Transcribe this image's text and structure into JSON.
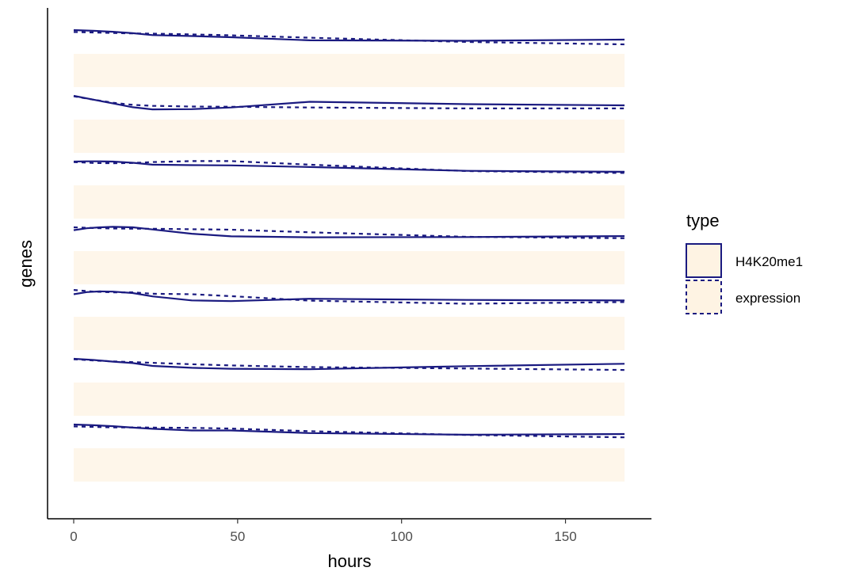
{
  "chart_data": {
    "type": "line",
    "xlabel": "hours",
    "ylabel": "genes",
    "xlim": [
      -7.5,
      175.5
    ],
    "xticks": [
      0,
      50,
      100,
      150
    ],
    "grid": false,
    "legend": {
      "title": "type",
      "placement": "right",
      "entries": [
        {
          "label": "H4K20me1",
          "line": "solid"
        },
        {
          "label": "expression",
          "line": "dashed"
        }
      ]
    },
    "colors": {
      "line": "#1a1a80",
      "ribbon": "#fdebd0"
    },
    "genes": [
      {
        "h4k20me1": {
          "x": [
            0,
            6,
            12,
            18,
            24,
            36,
            48,
            72,
            120,
            168
          ],
          "y": [
            1.0,
            0.97,
            0.93,
            0.87,
            0.79,
            0.75,
            0.7,
            0.57,
            0.55,
            0.6
          ]
        },
        "expression": {
          "x": [
            0,
            6,
            12,
            18,
            24,
            36,
            48,
            72,
            120,
            168
          ],
          "y": [
            0.92,
            0.9,
            0.88,
            0.86,
            0.85,
            0.82,
            0.78,
            0.68,
            0.5,
            0.4
          ]
        }
      },
      {
        "h4k20me1": {
          "x": [
            0,
            6,
            12,
            18,
            24,
            36,
            48,
            72,
            120,
            168
          ],
          "y": [
            1.0,
            0.84,
            0.68,
            0.52,
            0.43,
            0.44,
            0.51,
            0.75,
            0.65,
            0.6
          ]
        },
        "expression": {
          "x": [
            0,
            6,
            12,
            18,
            24,
            36,
            48,
            72,
            120,
            168
          ],
          "y": [
            0.98,
            0.84,
            0.71,
            0.62,
            0.58,
            0.55,
            0.54,
            0.51,
            0.47,
            0.47
          ]
        }
      },
      {
        "h4k20me1": {
          "x": [
            0,
            4,
            8,
            12,
            18,
            24,
            36,
            48,
            72,
            120,
            168
          ],
          "y": [
            1.0,
            1.01,
            1.01,
            1.0,
            0.95,
            0.87,
            0.85,
            0.84,
            0.77,
            0.61,
            0.57
          ]
        },
        "expression": {
          "x": [
            0,
            6,
            12,
            18,
            24,
            36,
            48,
            72,
            120,
            168
          ],
          "y": [
            0.98,
            0.94,
            0.93,
            0.94,
            0.98,
            1.02,
            1.02,
            0.87,
            0.6,
            0.52
          ]
        }
      },
      {
        "h4k20me1": {
          "x": [
            0,
            4,
            8,
            12,
            18,
            24,
            36,
            48,
            72,
            120,
            168
          ],
          "y": [
            0.88,
            0.96,
            1.0,
            1.02,
            1.0,
            0.91,
            0.73,
            0.62,
            0.58,
            0.59,
            0.63
          ]
        },
        "expression": {
          "x": [
            0,
            6,
            12,
            18,
            24,
            36,
            48,
            72,
            120,
            168
          ],
          "y": [
            1.0,
            0.97,
            0.95,
            0.94,
            0.94,
            0.92,
            0.9,
            0.79,
            0.6,
            0.54
          ]
        }
      },
      {
        "h4k20me1": {
          "x": [
            0,
            4,
            8,
            12,
            18,
            24,
            36,
            48,
            72,
            120,
            168
          ],
          "y": [
            0.95,
            1.04,
            1.07,
            1.06,
            1.0,
            0.86,
            0.69,
            0.66,
            0.76,
            0.71,
            0.69
          ]
        },
        "expression": {
          "x": [
            0,
            6,
            12,
            18,
            24,
            36,
            48,
            72,
            120,
            168
          ],
          "y": [
            1.13,
            1.06,
            1.03,
            1.03,
            0.97,
            0.95,
            0.87,
            0.68,
            0.55,
            0.62
          ]
        }
      },
      {
        "h4k20me1": {
          "x": [
            0,
            6,
            12,
            18,
            24,
            36,
            48,
            72,
            120,
            168
          ],
          "y": [
            1.0,
            0.95,
            0.88,
            0.82,
            0.7,
            0.62,
            0.58,
            0.56,
            0.69,
            0.79
          ]
        },
        "expression": {
          "x": [
            0,
            6,
            12,
            18,
            24,
            36,
            48,
            72,
            120,
            168
          ],
          "y": [
            0.98,
            0.93,
            0.89,
            0.86,
            0.83,
            0.77,
            0.72,
            0.65,
            0.59,
            0.53
          ]
        }
      },
      {
        "h4k20me1": {
          "x": [
            0,
            6,
            12,
            18,
            24,
            36,
            48,
            72,
            120,
            168
          ],
          "y": [
            1.0,
            0.97,
            0.93,
            0.87,
            0.82,
            0.75,
            0.75,
            0.64,
            0.57,
            0.6
          ]
        },
        "expression": {
          "x": [
            0,
            6,
            12,
            18,
            24,
            36,
            48,
            72,
            120,
            168
          ],
          "y": [
            0.92,
            0.9,
            0.88,
            0.88,
            0.87,
            0.86,
            0.83,
            0.72,
            0.56,
            0.46
          ]
        }
      }
    ]
  }
}
